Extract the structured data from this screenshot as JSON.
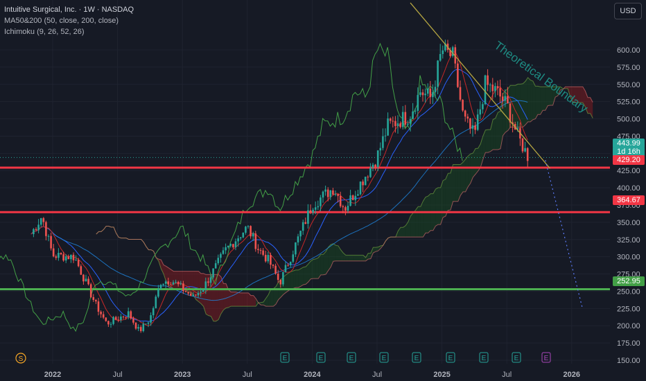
{
  "header": {
    "title": "Intuitive Surgical, Inc. · 1W · NASDAQ",
    "indicator_ma": "MA50&200 (50, close, 200, close)",
    "indicator_ichimoku": "Ichimoku (9, 26, 52, 26)"
  },
  "currency_button": "USD",
  "annotation": "Theoretical Boundary",
  "price_labels": {
    "last": "443.99",
    "countdown": "1d 16h",
    "level_1": "429.20",
    "level_2": "364.67",
    "level_3": "252.95"
  },
  "colors": {
    "background": "#161a25",
    "up": "#26a69a",
    "down": "#ef5350",
    "resistance_lines": "#f23645",
    "support_line": "#4caf50",
    "trendline": "#b5a642",
    "ma50": "#2962ff",
    "chikou": "#43a047",
    "cloud_bull": "#1b5e20",
    "cloud_bear": "#b71c1c"
  },
  "event_markers": {
    "earnings": [
      "E",
      "E",
      "E",
      "E",
      "E",
      "E",
      "E",
      "E",
      "E"
    ],
    "split": "S"
  },
  "chart_data": {
    "type": "candlestick",
    "x_axis_labels": [
      "2022",
      "Jul",
      "2023",
      "Jul",
      "2024",
      "Jul",
      "2025",
      "Jul",
      "2026"
    ],
    "y_ticks": [
      "600.00",
      "575.00",
      "550.00",
      "525.00",
      "500.00",
      "475.00",
      "450.00",
      "425.00",
      "400.00",
      "375.00",
      "350.00",
      "325.00",
      "300.00",
      "275.00",
      "250.00",
      "225.00",
      "200.00",
      "175.00",
      "150.00"
    ],
    "ylim": [
      150,
      625
    ],
    "horizontal_levels": [
      429.2,
      364.67,
      252.95
    ],
    "last_price": 443.99,
    "trendline": {
      "from": [
        "2024-12",
        618
      ],
      "to": [
        "2025-11",
        428
      ]
    },
    "projection": {
      "from": [
        "2025-08",
        440
      ],
      "to": [
        "2026-02",
        225
      ]
    },
    "close_path": [
      {
        "t": "2021-11",
        "v": 333
      },
      {
        "t": "2021-12",
        "v": 359
      },
      {
        "t": "2022-01",
        "v": 302
      },
      {
        "t": "2022-03",
        "v": 300
      },
      {
        "t": "2022-05",
        "v": 230
      },
      {
        "t": "2022-06",
        "v": 203
      },
      {
        "t": "2022-08",
        "v": 218
      },
      {
        "t": "2022-09",
        "v": 192
      },
      {
        "t": "2022-10",
        "v": 210
      },
      {
        "t": "2022-11",
        "v": 264
      },
      {
        "t": "2022-12",
        "v": 266
      },
      {
        "t": "2023-02",
        "v": 241
      },
      {
        "t": "2023-03",
        "v": 257
      },
      {
        "t": "2023-05",
        "v": 310
      },
      {
        "t": "2023-07",
        "v": 343
      },
      {
        "t": "2023-08",
        "v": 312
      },
      {
        "t": "2023-09",
        "v": 294
      },
      {
        "t": "2023-10",
        "v": 262
      },
      {
        "t": "2023-11",
        "v": 300
      },
      {
        "t": "2024-01",
        "v": 376
      },
      {
        "t": "2024-03",
        "v": 400
      },
      {
        "t": "2024-04",
        "v": 370
      },
      {
        "t": "2024-05",
        "v": 395
      },
      {
        "t": "2024-07",
        "v": 445
      },
      {
        "t": "2024-08",
        "v": 490
      },
      {
        "t": "2024-10",
        "v": 505
      },
      {
        "t": "2024-11",
        "v": 540
      },
      {
        "t": "2024-12",
        "v": 530
      },
      {
        "t": "2025-01",
        "v": 600
      },
      {
        "t": "2025-02",
        "v": 590
      },
      {
        "t": "2025-03",
        "v": 500
      },
      {
        "t": "2025-04",
        "v": 475
      },
      {
        "t": "2025-05",
        "v": 550
      },
      {
        "t": "2025-06",
        "v": 540
      },
      {
        "t": "2025-07",
        "v": 520
      },
      {
        "t": "2025-08",
        "v": 475
      },
      {
        "t": "2025-09",
        "v": 444
      }
    ]
  }
}
